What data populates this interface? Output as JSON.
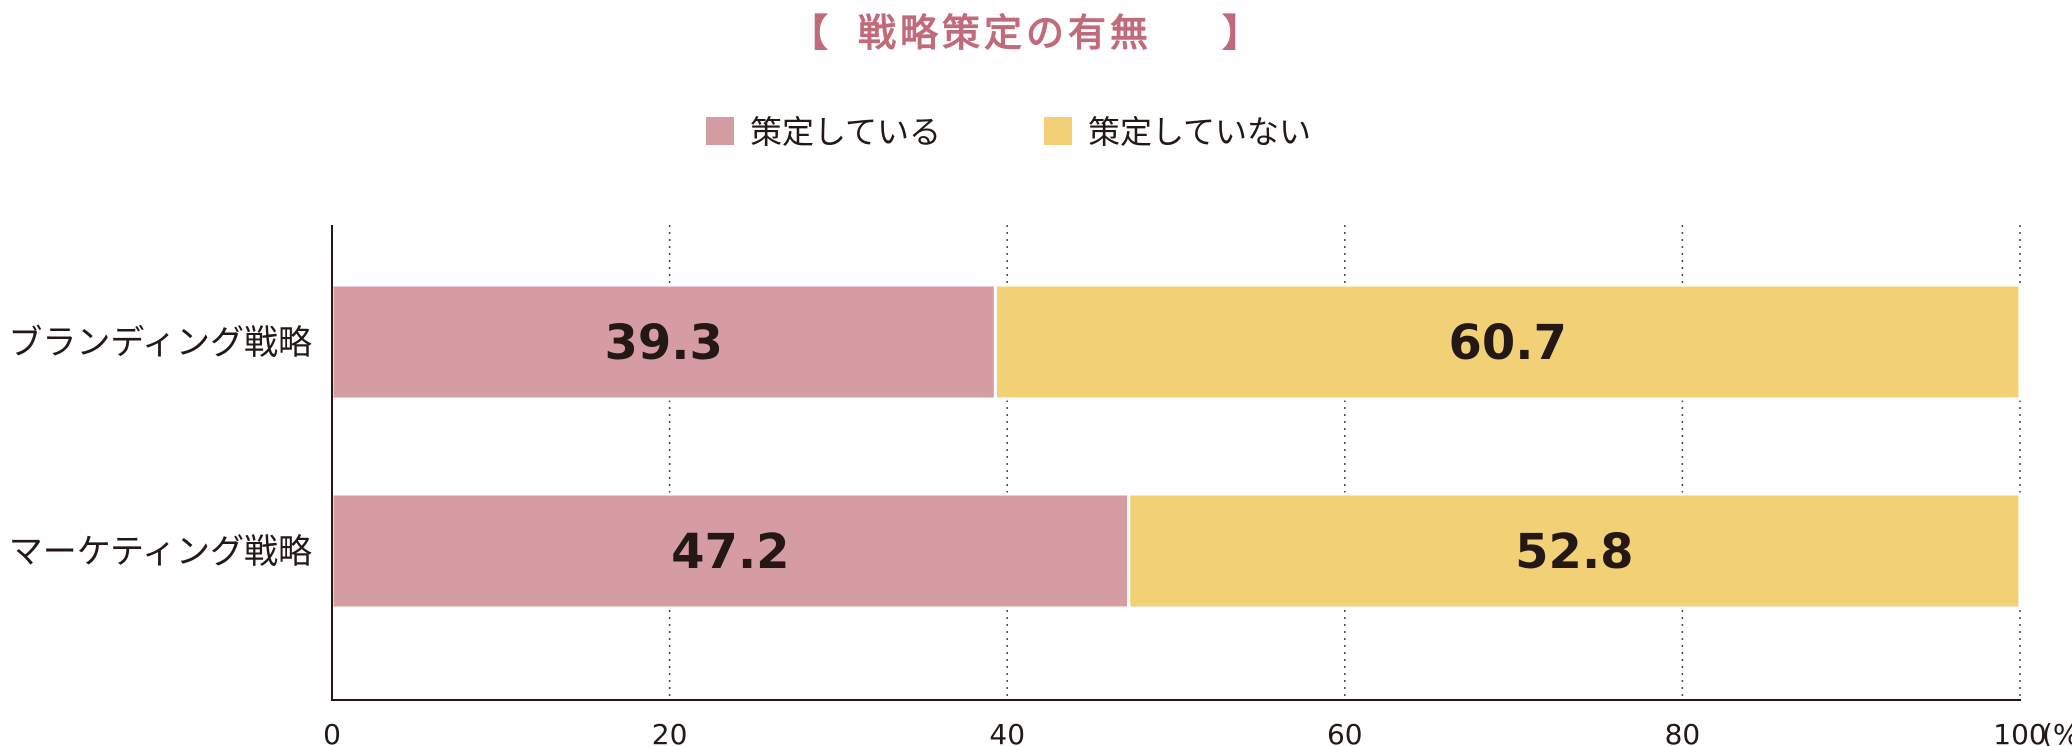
{
  "chart_data": {
    "type": "bar",
    "stacked": true,
    "orientation": "horizontal",
    "title": "戦略策定の有無",
    "title_bracket_open": "【",
    "title_bracket_close": "】",
    "categories": [
      "ブランディング戦略",
      "マーケティング戦略"
    ],
    "series": [
      {
        "name": "策定している",
        "values": [
          39.3,
          47.2
        ],
        "color": "#d59ca3"
      },
      {
        "name": "策定していない",
        "values": [
          60.7,
          52.8
        ],
        "color": "#f2d176"
      }
    ],
    "xlim": [
      0,
      100
    ],
    "xticks": [
      0,
      20,
      40,
      60,
      80,
      100
    ],
    "xunit": "(%)",
    "grid": true,
    "legend": "top-center"
  }
}
